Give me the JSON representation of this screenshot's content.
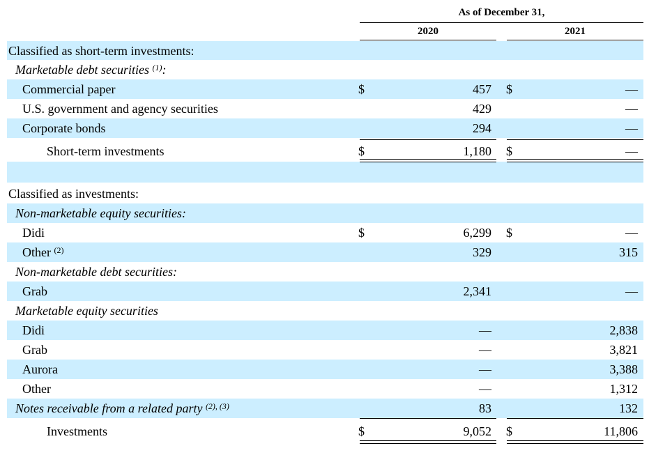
{
  "header": {
    "period_title": "As of December 31,",
    "col_2020": "2020",
    "col_2021": "2021"
  },
  "rows": [
    {
      "label": "Classified as short-term investments:",
      "sup": "",
      "italic": false,
      "indent": 0,
      "v2020": "",
      "v2021": "",
      "dol2020": "",
      "dol2021": ""
    },
    {
      "label": "Marketable debt securities",
      "sup": "(1)",
      "suffix": ":",
      "italic": true,
      "indent": 1,
      "v2020": "",
      "v2021": "",
      "dol2020": "",
      "dol2021": ""
    },
    {
      "label": "Commercial paper",
      "sup": "",
      "italic": false,
      "indent": 2,
      "v2020": "457",
      "v2021": "—",
      "dol2020": "$",
      "dol2021": "$"
    },
    {
      "label": "U.S. government and agency securities",
      "sup": "",
      "italic": false,
      "indent": 2,
      "v2020": "429",
      "v2021": "—",
      "dol2020": "",
      "dol2021": ""
    },
    {
      "label": "Corporate bonds",
      "sup": "",
      "italic": false,
      "indent": 2,
      "v2020": "294",
      "v2021": "—",
      "dol2020": "",
      "dol2021": ""
    },
    {
      "label": "Short-term investments",
      "sup": "",
      "italic": false,
      "indent": 3,
      "v2020": "1,180",
      "v2021": "—",
      "dol2020": "$",
      "dol2021": "$"
    },
    {
      "label": "Classified as investments:",
      "sup": "",
      "italic": false,
      "indent": 0,
      "v2020": "",
      "v2021": "",
      "dol2020": "",
      "dol2021": ""
    },
    {
      "label": "Non-marketable equity securities:",
      "sup": "",
      "italic": true,
      "indent": 1,
      "v2020": "",
      "v2021": "",
      "dol2020": "",
      "dol2021": ""
    },
    {
      "label": "Didi",
      "sup": "",
      "italic": false,
      "indent": 2,
      "v2020": "6,299",
      "v2021": "—",
      "dol2020": "$",
      "dol2021": "$"
    },
    {
      "label": "Other",
      "sup": "(2)",
      "italic": false,
      "indent": 2,
      "v2020": "329",
      "v2021": "315",
      "dol2020": "",
      "dol2021": ""
    },
    {
      "label": "Non-marketable debt securities:",
      "sup": "",
      "italic": true,
      "indent": 1,
      "v2020": "",
      "v2021": "",
      "dol2020": "",
      "dol2021": ""
    },
    {
      "label": "Grab",
      "sup": "",
      "italic": false,
      "indent": 2,
      "v2020": "2,341",
      "v2021": "—",
      "dol2020": "",
      "dol2021": ""
    },
    {
      "label": "Marketable equity securities",
      "sup": "",
      "italic": true,
      "indent": 1,
      "v2020": "",
      "v2021": "",
      "dol2020": "",
      "dol2021": ""
    },
    {
      "label": "Didi",
      "sup": "",
      "italic": false,
      "indent": 2,
      "v2020": "—",
      "v2021": "2,838",
      "dol2020": "",
      "dol2021": ""
    },
    {
      "label": "Grab",
      "sup": "",
      "italic": false,
      "indent": 2,
      "v2020": "—",
      "v2021": "3,821",
      "dol2020": "",
      "dol2021": ""
    },
    {
      "label": "Aurora",
      "sup": "",
      "italic": false,
      "indent": 2,
      "v2020": "—",
      "v2021": "3,388",
      "dol2020": "",
      "dol2021": ""
    },
    {
      "label": "Other",
      "sup": "",
      "italic": false,
      "indent": 2,
      "v2020": "—",
      "v2021": "1,312",
      "dol2020": "",
      "dol2021": ""
    },
    {
      "label": "Notes receivable from a related party",
      "sup": "(2), (3)",
      "italic": true,
      "indent": 1,
      "v2020": "83",
      "v2021": "132",
      "dol2020": "",
      "dol2021": ""
    },
    {
      "label": "Investments",
      "sup": "",
      "italic": false,
      "indent": 3,
      "v2020": "9,052",
      "v2021": "11,806",
      "dol2020": "$",
      "dol2021": "$"
    }
  ]
}
